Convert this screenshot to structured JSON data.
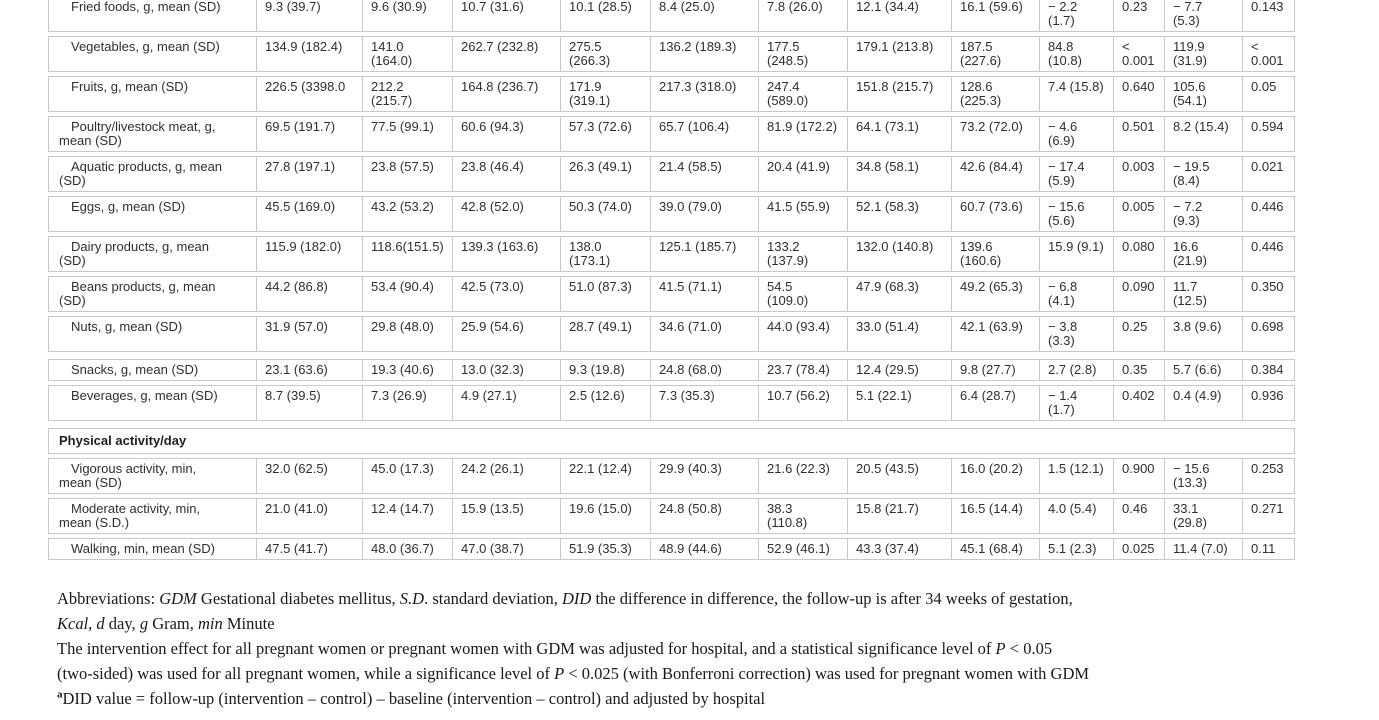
{
  "table": {
    "rows": [
      {
        "type": "data",
        "label": "Fried foods, g, mean (SD)",
        "cells": [
          "9.3 (39.7)",
          "9.6 (30.9)",
          "10.7 (31.6)",
          "10.1 (28.5)",
          "8.4 (25.0)",
          "7.8 (26.0)",
          "12.1 (34.4)",
          "16.1 (59.6)",
          "− 2.2\n(1.7)",
          "0.23",
          "− 7.7\n(5.3)",
          "0.143"
        ]
      },
      {
        "type": "data",
        "label": "Vegetables, g, mean (SD)",
        "cells": [
          "134.9 (182.4)",
          "141.0\n(164.0)",
          "262.7 (232.8)",
          "275.5\n(266.3)",
          "136.2 (189.3)",
          "177.5\n(248.5)",
          "179.1 (213.8)",
          "187.5\n(227.6)",
          "84.8\n(10.8)",
          "<\n0.001",
          "119.9\n(31.9)",
          "<\n0.001"
        ]
      },
      {
        "type": "data",
        "label": "Fruits, g, mean (SD)",
        "cells": [
          "226.5 (3398.0",
          "212.2\n(215.7)",
          "164.8 (236.7)",
          "171.9\n(319.1)",
          "217.3 (318.0)",
          "247.4\n(589.0)",
          "151.8 (215.7)",
          "128.6\n(225.3)",
          "7.4 (15.8)",
          "0.640",
          "105.6\n(54.1)",
          "0.05"
        ]
      },
      {
        "type": "data",
        "label": "Poultry/livestock meat, g,\nmean (SD)",
        "cells": [
          "69.5 (191.7)",
          "77.5 (99.1)",
          "60.6 (94.3)",
          "57.3 (72.6)",
          "65.7 (106.4)",
          "81.9 (172.2)",
          "64.1 (73.1)",
          "73.2 (72.0)",
          "− 4.6\n(6.9)",
          "0.501",
          "8.2 (15.4)",
          "0.594"
        ]
      },
      {
        "type": "data",
        "label": "Aquatic products, g, mean\n(SD)",
        "cells": [
          "27.8 (197.1)",
          "23.8 (57.5)",
          "23.8 (46.4)",
          "26.3 (49.1)",
          "21.4 (58.5)",
          "20.4 (41.9)",
          "34.8 (58.1)",
          "42.6 (84.4)",
          "− 17.4\n(5.9)",
          "0.003",
          "− 19.5\n(8.4)",
          "0.021"
        ]
      },
      {
        "type": "data",
        "label": "Eggs, g, mean (SD)",
        "cells": [
          "45.5 (169.0)",
          "43.2 (53.2)",
          "42.8 (52.0)",
          "50.3 (74.0)",
          "39.0 (79.0)",
          "41.5 (55.9)",
          "52.1 (58.3)",
          "60.7 (73.6)",
          "− 15.6\n(5.6)",
          "0.005",
          "− 7.2\n(9.3)",
          "0.446"
        ]
      },
      {
        "type": "data",
        "label": "Dairy products, g, mean\n(SD)",
        "cells": [
          "115.9 (182.0)",
          "118.6(151.5)",
          "139.3 (163.6)",
          "138.0\n(173.1)",
          "125.1 (185.7)",
          "133.2\n(137.9)",
          "132.0 (140.8)",
          "139.6\n(160.6)",
          "15.9 (9.1)",
          "0.080",
          "16.6\n(21.9)",
          "0.446"
        ]
      },
      {
        "type": "data",
        "label": "Beans products, g, mean\n(SD)",
        "cells": [
          "44.2 (86.8)",
          "53.4 (90.4)",
          "42.5 (73.0)",
          "51.0 (87.3)",
          "41.5 (71.1)",
          "54.5\n(109.0)",
          "47.9 (68.3)",
          "49.2 (65.3)",
          "− 6.8\n(4.1)",
          "0.090",
          "11.7\n(12.5)",
          "0.350"
        ]
      },
      {
        "type": "data",
        "label": "Nuts, g, mean (SD)",
        "cells": [
          "31.9 (57.0)",
          "29.8 (48.0)",
          "25.9 (54.6)",
          "28.7 (49.1)",
          "34.6 (71.0)",
          "44.0 (93.4)",
          "33.0 (51.4)",
          "42.1 (63.9)",
          "− 3.8\n(3.3)",
          "0.25",
          "3.8 (9.6)",
          "0.698"
        ]
      },
      {
        "type": "data",
        "gap": true,
        "label": "Snacks, g, mean (SD)",
        "cells": [
          "23.1 (63.6)",
          "19.3 (40.6)",
          "13.0 (32.3)",
          "9.3 (19.8)",
          "24.8 (68.0)",
          "23.7 (78.4)",
          "12.4 (29.5)",
          "9.8 (27.7)",
          "2.7 (2.8)",
          "0.35",
          "5.7 (6.6)",
          "0.384"
        ]
      },
      {
        "type": "data",
        "label": "Beverages, g, mean (SD)",
        "cells": [
          "8.7 (39.5)",
          "7.3 (26.9)",
          "4.9 (27.1)",
          "2.5 (12.6)",
          "7.3 (35.3)",
          "10.7 (56.2)",
          "5.1 (22.1)",
          "6.4 (28.7)",
          "− 1.4\n(1.7)",
          "0.402",
          "0.4 (4.9)",
          "0.936"
        ]
      },
      {
        "type": "section",
        "gap": true,
        "label": "Physical activity/day"
      },
      {
        "type": "data",
        "label": "Vigorous activity, min,\nmean (SD)",
        "cells": [
          "32.0 (62.5)",
          "45.0 (17.3)",
          "24.2 (26.1)",
          "22.1 (12.4)",
          "29.9 (40.3)",
          "21.6 (22.3)",
          "20.5 (43.5)",
          "16.0 (20.2)",
          "1.5 (12.1)",
          "0.900",
          "− 15.6\n(13.3)",
          "0.253"
        ]
      },
      {
        "type": "data",
        "label": "Moderate activity, min,\nmean (S.D.)",
        "cells": [
          "21.0 (41.0)",
          "12.4 (14.7)",
          "15.9 (13.5)",
          "19.6 (15.0)",
          "24.8 (50.8)",
          "38.3\n(110.8)",
          "15.8 (21.7)",
          "16.5 (14.4)",
          "4.0 (5.4)",
          "0.46",
          "33.1\n(29.8)",
          "0.271"
        ]
      },
      {
        "type": "data",
        "label": "Walking, min, mean (SD)",
        "cells": [
          "47.5 (41.7)",
          "48.0 (36.7)",
          "47.0 (38.7)",
          "51.9 (35.3)",
          "48.9 (44.6)",
          "52.9 (46.1)",
          "43.3 (37.4)",
          "45.1 (68.4)",
          "5.1 (2.3)",
          "0.025",
          "11.4 (7.0)",
          "0.11"
        ]
      }
    ]
  },
  "footnotes": {
    "lines": [
      [
        {
          "t": "Abbreviations: "
        },
        {
          "t": "GDM",
          "i": true
        },
        {
          "t": " Gestational diabetes mellitus, "
        },
        {
          "t": "S.D",
          "i": true
        },
        {
          "t": ". standard deviation, "
        },
        {
          "t": "DID",
          "i": true
        },
        {
          "t": " the difference in difference, the follow-up is after 34 weeks of gestation,"
        }
      ],
      [
        {
          "t": "Kcal",
          "i": true
        },
        {
          "t": ", "
        },
        {
          "t": "d",
          "i": true
        },
        {
          "t": " day, "
        },
        {
          "t": "g",
          "i": true
        },
        {
          "t": " Gram, "
        },
        {
          "t": "min",
          "i": true
        },
        {
          "t": " Minute"
        }
      ],
      [
        {
          "t": "The intervention effect for all pregnant women or pregnant women with GDM was adjusted for hospital, and a statistical significance level of "
        },
        {
          "t": "P",
          "i": true
        },
        {
          "t": " < 0.05"
        }
      ],
      [
        {
          "t": "(two-sided) was used for all pregnant women, while a significance level of "
        },
        {
          "t": "P",
          "i": true
        },
        {
          "t": " < 0.025 (with Bonferroni correction) was used for pregnant women with GDM"
        }
      ],
      [
        {
          "t": "a",
          "sup": true
        },
        {
          "t": "DID value = follow-up (intervention – control) – baseline (intervention – control) and adjusted by hospital"
        }
      ]
    ]
  },
  "colors": {
    "border": "#c8c8c8",
    "table_text": "#2f2f2f",
    "footnote_text": "#191919"
  }
}
